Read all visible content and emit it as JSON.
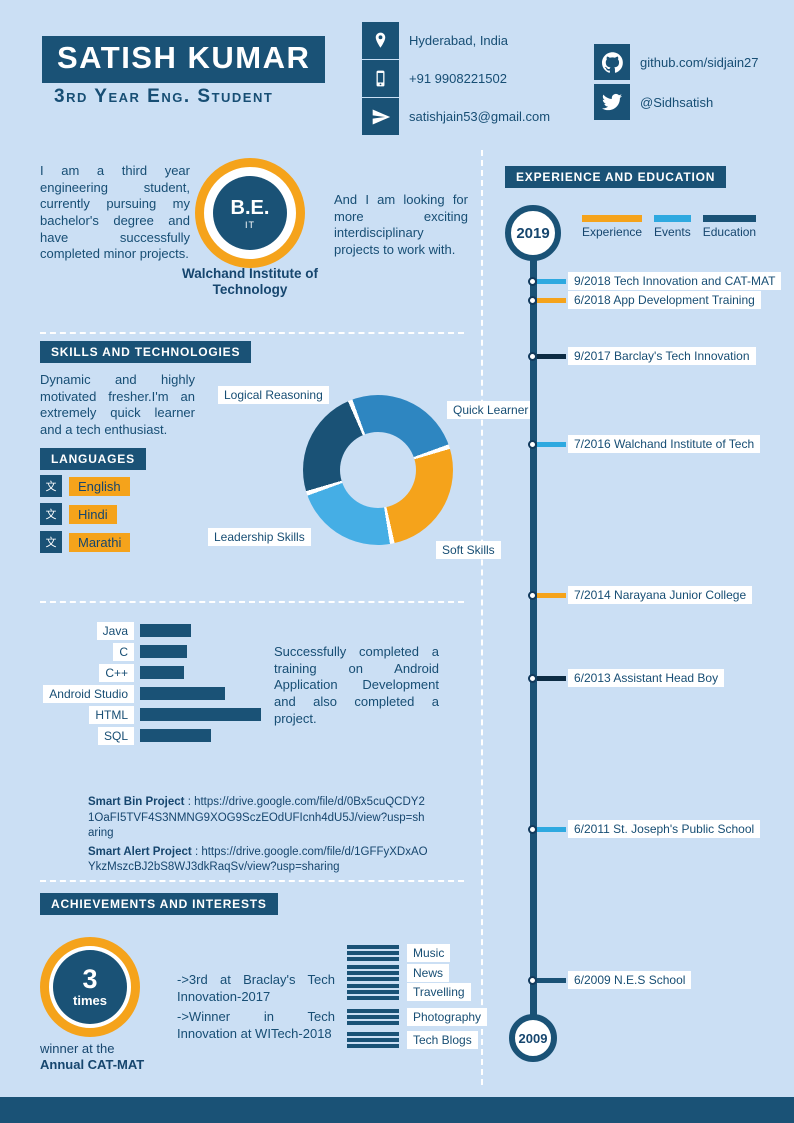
{
  "colors": {
    "background": "#cbdff4",
    "primary": "#1a5276",
    "accent_orange": "#f5a31b",
    "accent_light_blue": "#2ea9e0",
    "text": "#174e74"
  },
  "header": {
    "name": "SATISH KUMAR",
    "subtitle": "3rd Year Eng. Student",
    "contacts": [
      {
        "icon": "location-pin",
        "text": "Hyderabad, India"
      },
      {
        "icon": "mobile-phone",
        "text": "+91 9908221502"
      },
      {
        "icon": "paper-plane",
        "text": "satishjain53@gmail.com"
      }
    ],
    "socials": [
      {
        "icon": "github",
        "text": "github.com/sidjain27"
      },
      {
        "icon": "twitter",
        "text": "@Sidhsatish"
      }
    ]
  },
  "about": {
    "intro": "I am a third year engineering student, currently pursuing my bachelor's degree and have successfully completed minor projects.",
    "degree": "B.E.",
    "degree_field": "IT",
    "institute": "Walchand Institute of Technology",
    "outro": "And I am looking for more exciting interdisciplinary projects to work with."
  },
  "skills_section": {
    "title": "SKILLS AND TECHNOLOGIES",
    "intro": "Dynamic and highly motivated fresher.I'm an extremely quick learner and a tech enthusiast."
  },
  "languages": {
    "title": "LANGUAGES",
    "items": [
      "English",
      "Hindi",
      "Marathi"
    ]
  },
  "training": {
    "text": "Successfully completed a training on Android Application Development and also completed a project.",
    "joiner": " : ",
    "projects": [
      {
        "label": "Smart Bin Project",
        "url": "https://drive.google.com/file/d/0Bx5cuQCDY21OaFI5TVF4S3NMNG9XOG9SczEOdUFIcnh4dU5J/view?usp=sharing"
      },
      {
        "label": "Smart Alert Project",
        "url": "https://drive.google.com/file/d/1GFFyXDxAOYkzMszcBJ2bS8WJ3dkRaqSv/view?usp=sharing"
      }
    ]
  },
  "achievements": {
    "title": "ACHIEVEMENTS AND INTERESTS",
    "badge_value": "3",
    "badge_unit": "times",
    "caption_line1": "winner at the",
    "caption_line2": "Annual CAT-MAT",
    "notes": [
      "->3rd at Braclay's Tech Innovation-2017",
      "->Winner in Tech Innovation at WITech-2018"
    ]
  },
  "interests": [
    "Music",
    "News",
    "Travelling",
    "Photography",
    "Tech Blogs"
  ],
  "timeline": {
    "title": "EXPERIENCE AND EDUCATION",
    "top_year": "2019",
    "bottom_year": "2009",
    "legend": [
      {
        "label": "Experience",
        "color": "#f5a31b"
      },
      {
        "label": "Events",
        "color": "#2ea9e0"
      },
      {
        "label": "Education",
        "color": "#1a5276"
      }
    ],
    "entries": [
      {
        "date": "9/2018",
        "text": "Tech Innovation and CAT-MAT",
        "color": "#2ea9e0"
      },
      {
        "date": "6/2018",
        "text": "App Development Training",
        "color": "#f5a31b"
      },
      {
        "date": "9/2017",
        "text": "Barclay's Tech Innovation",
        "color": "#0d2c44"
      },
      {
        "date": "7/2016",
        "text": "Walchand Institute of Tech",
        "color": "#2ea9e0"
      },
      {
        "date": "7/2014",
        "text": "Narayana Junior College",
        "color": "#f5a31b"
      },
      {
        "date": "6/2013",
        "text": "Assistant Head Boy",
        "color": "#0d2c44"
      },
      {
        "date": "6/2011",
        "text": "St. Joseph's Public School",
        "color": "#2ea9e0"
      },
      {
        "date": "6/2009",
        "text": "N.E.S School",
        "color": "#1a5276"
      }
    ]
  },
  "chart_data": [
    {
      "type": "pie",
      "title": "Soft skills donut",
      "labels": [
        "Quick Learner",
        "Soft Skills",
        "Leadership Skills",
        "Logical Reasoning"
      ],
      "values": [
        26,
        27,
        23,
        24
      ],
      "colors": [
        "#2e86c1",
        "#f5a31b",
        "#45aee5",
        "#1a5276"
      ],
      "donut": true,
      "legend_position": "around"
    },
    {
      "type": "bar",
      "title": "Technologies proficiency",
      "orientation": "horizontal",
      "categories": [
        "Java",
        "C",
        "C++",
        "Android Studio",
        "HTML",
        "SQL"
      ],
      "values": [
        42,
        39,
        36,
        70,
        100,
        59
      ],
      "xlim": [
        0,
        100
      ],
      "grid": false
    }
  ]
}
